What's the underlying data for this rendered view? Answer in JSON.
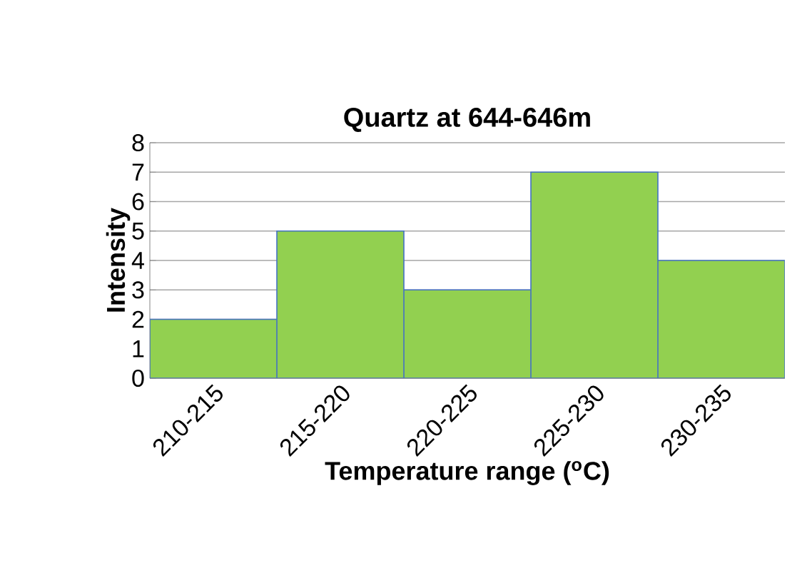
{
  "chart_data": {
    "type": "bar",
    "title": "Quartz at 644-646m",
    "xlabel": "Temperature range ($^{o}$C)",
    "ylabel": "Intensity",
    "categories": [
      "210-215",
      "215-220",
      "220-225",
      "225-230",
      "230-235"
    ],
    "values": [
      2,
      5,
      3,
      7,
      4
    ],
    "color": "#92d050",
    "ylim": [
      0,
      8
    ],
    "yticks": [
      0,
      1,
      2,
      3,
      4,
      5,
      6,
      7,
      8
    ],
    "grid": "y"
  }
}
